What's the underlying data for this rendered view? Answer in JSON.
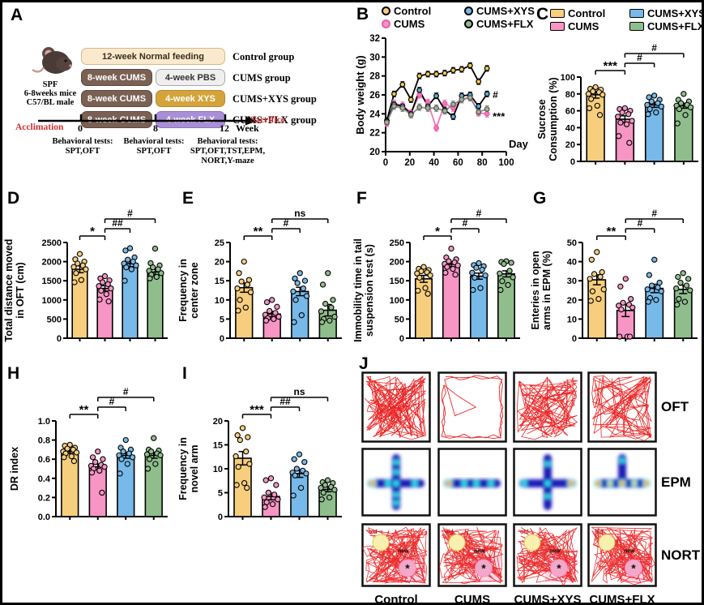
{
  "panels": {
    "a": "A",
    "b": "B",
    "c": "C",
    "d": "D",
    "e": "E",
    "f": "F",
    "g": "G",
    "h": "H",
    "i": "I",
    "j": "J"
  },
  "groups": [
    {
      "name": "Control",
      "color": "#F6CE7E"
    },
    {
      "name": "CUMS",
      "color": "#F795C5"
    },
    {
      "name": "CUMS+XYS",
      "color": "#77B9E8"
    },
    {
      "name": "CUMS+FLX",
      "color": "#8FBE8C"
    }
  ],
  "colors": {
    "trace_red": "#EA1A1A",
    "epm_blue": "#1C1CB8",
    "red_text": "#D03030",
    "box_feed": "#FAE9CC",
    "box_cums": "#7A6153",
    "box_pbs": "#EFEFEF",
    "box_xys": "#D4A43C",
    "box_flx": "#A98FD6"
  },
  "panel_a": {
    "subject": {
      "line1": "SPF",
      "line2": "6-8weeks mice",
      "line3": "C57/BL male"
    },
    "rows": [
      {
        "box1": "12-week Normal feeding",
        "group": "Control group"
      },
      {
        "box1": "8-week CUMS",
        "box2": "4-week PBS",
        "group": "CUMS group"
      },
      {
        "box1": "8-week CUMS",
        "box2": "4-week XYS",
        "group": "CUMS+XYS group"
      },
      {
        "box1": "8-week CUMS",
        "box2": "4-week FLX",
        "group": "CUMS+FLX group"
      }
    ],
    "timeline": {
      "acclimation": "Acclimation",
      "tick0": "0",
      "tick8": "8",
      "tick12": "12",
      "week": "Week",
      "sacrifice": "Sacrifice"
    },
    "tests": [
      {
        "title": "Behavioral tests:",
        "lines": [
          "SPT,OFT"
        ]
      },
      {
        "title": "Behavioral tests:",
        "lines": [
          "SPT,OFT"
        ]
      },
      {
        "title": "Behavioral tests:",
        "lines": [
          "SPT,OFT,TST,EPM,",
          "NORT,Y-maze"
        ]
      }
    ]
  },
  "panel_j": {
    "row_labels": [
      "OFT",
      "EPM",
      "NORT"
    ],
    "column_labels": [
      "Control",
      "CUMS",
      "CUMS+XYS",
      "CUMS+FLX"
    ],
    "nort_labels": {
      "old": "old",
      "new": "new",
      "star": "*"
    }
  },
  "chart_data": [
    {
      "id": "B",
      "type": "line",
      "ylabel": "Body weight (g)",
      "xlabel": "Day",
      "xlim": [
        0,
        100
      ],
      "ylim": [
        20,
        32
      ],
      "xticks": [
        0,
        20,
        40,
        60,
        80,
        100
      ],
      "yticks": [
        20,
        22,
        24,
        26,
        28,
        30,
        32
      ],
      "x": [
        1,
        7,
        14,
        21,
        28,
        35,
        42,
        49,
        56,
        63,
        70,
        77,
        84
      ],
      "series": [
        {
          "name": "Control",
          "line_color": "#000000",
          "marker_color": "#F2C94C",
          "marker_stroke": "#000000",
          "err": 0.3,
          "values": [
            23.3,
            26.1,
            27.1,
            25.5,
            28.0,
            28.2,
            28.2,
            28.3,
            28.6,
            28.7,
            29.1,
            27.4,
            28.8
          ]
        },
        {
          "name": "CUMS",
          "line_color": "#F574B8",
          "marker_color": "#F574B8",
          "marker_stroke": "#E95BA5",
          "err": 0.35,
          "values": [
            23.0,
            25.1,
            24.9,
            24.1,
            26.0,
            25.2,
            22.5,
            25.1,
            24.6,
            25.5,
            25.8,
            24.1,
            24.0
          ]
        },
        {
          "name": "CUMS+XYS",
          "line_color": "#000000",
          "marker_color": "#5FAFE2",
          "marker_stroke": "#000000",
          "err": 0.3,
          "values": [
            23.2,
            25.0,
            24.8,
            24.0,
            26.5,
            24.8,
            25.9,
            24.4,
            23.7,
            25.9,
            26.0,
            24.8,
            26.1
          ]
        },
        {
          "name": "CUMS+FLX",
          "line_color": "#8A8A8A",
          "marker_color": "#9DB98F",
          "marker_stroke": "#555555",
          "err": 0.35,
          "values": [
            23.1,
            24.8,
            24.6,
            23.9,
            24.7,
            24.6,
            24.6,
            24.3,
            25.0,
            25.5,
            25.7,
            24.2,
            24.5
          ]
        }
      ],
      "annotations": [
        {
          "text": "#",
          "x": 86,
          "y": 26.0
        },
        {
          "text": "***",
          "x": 86,
          "y": 23.7
        }
      ],
      "legend_position": "top"
    },
    {
      "id": "C",
      "type": "bar",
      "ylabel_lines": [
        "Sucrose",
        "Consumption (%)"
      ],
      "categories": [
        "Control",
        "CUMS",
        "CUMS+XYS",
        "CUMS+FLX"
      ],
      "values": [
        79,
        50,
        67,
        66
      ],
      "errors": [
        4,
        4,
        3,
        3
      ],
      "ylim": [
        0,
        100
      ],
      "yticks": [
        0,
        20,
        40,
        60,
        80,
        100
      ],
      "points": [
        [
          88,
          86,
          85,
          83,
          82,
          80,
          79,
          74,
          66,
          63,
          55
        ],
        [
          63,
          62,
          60,
          58,
          56,
          53,
          48,
          46,
          44,
          30,
          22
        ],
        [
          78,
          76,
          73,
          71,
          69,
          67,
          65,
          62,
          58,
          56
        ],
        [
          80,
          73,
          71,
          69,
          67,
          66,
          64,
          62,
          55,
          45
        ]
      ],
      "sig": [
        {
          "a": 0,
          "b": 1,
          "label": "***",
          "level": 1
        },
        {
          "a": 1,
          "b": 2,
          "label": "#",
          "level": 1.6
        },
        {
          "a": 1,
          "b": 3,
          "label": "#",
          "level": 2.4
        }
      ],
      "legend_position": "top"
    },
    {
      "id": "D",
      "type": "bar",
      "ylabel_lines": [
        "Total distance moved",
        "in OFT (cm)"
      ],
      "categories": [
        "Control",
        "CUMS",
        "CUMS+XYS",
        "CUMS+FLX"
      ],
      "values": [
        1800,
        1300,
        1950,
        1730
      ],
      "errors": [
        90,
        70,
        80,
        70
      ],
      "ylim": [
        0,
        2500
      ],
      "yticks": [
        0,
        500,
        1000,
        1500,
        2000,
        2500
      ],
      "points": [
        [
          2200,
          2060,
          2000,
          1950,
          1900,
          1860,
          1800,
          1700,
          1520,
          1460
        ],
        [
          1620,
          1560,
          1510,
          1460,
          1410,
          1360,
          1300,
          1240,
          1150,
          1010,
          960
        ],
        [
          2350,
          2290,
          2110,
          2050,
          2000,
          1950,
          1900,
          1850,
          1800,
          1500
        ],
        [
          2340,
          1960,
          1900,
          1850,
          1800,
          1760,
          1700,
          1660,
          1600,
          1560
        ]
      ],
      "sig": [
        {
          "a": 0,
          "b": 1,
          "label": "*",
          "level": 1
        },
        {
          "a": 1,
          "b": 2,
          "label": "##",
          "level": 1.6
        },
        {
          "a": 1,
          "b": 3,
          "label": "#",
          "level": 2.4
        }
      ]
    },
    {
      "id": "E",
      "type": "bar",
      "ylabel_lines": [
        "Frequency in",
        "center zone"
      ],
      "categories": [
        "Control",
        "CUMS",
        "CUMS+XYS",
        "CUMS+FLX"
      ],
      "values": [
        13.2,
        6.3,
        12.2,
        7.3
      ],
      "errors": [
        1.2,
        0.7,
        1.1,
        1.5
      ],
      "ylim": [
        0,
        25
      ],
      "yticks": [
        0,
        5,
        10,
        15,
        20,
        25
      ],
      "points": [
        [
          20,
          17,
          15.2,
          14.8,
          14,
          13,
          12,
          10,
          8,
          7.2
        ],
        [
          10,
          9.4,
          8.2,
          7.1,
          6.6,
          6.1,
          5.6,
          5.2,
          5,
          4.6
        ],
        [
          17,
          15.6,
          15,
          14.4,
          13,
          12.2,
          11,
          10,
          6,
          4.2
        ],
        [
          17,
          14,
          10,
          9,
          8,
          7,
          5.6,
          5,
          4.6,
          4.2
        ]
      ],
      "sig": [
        {
          "a": 0,
          "b": 1,
          "label": "**",
          "level": 1
        },
        {
          "a": 1,
          "b": 2,
          "label": "#",
          "level": 1.6
        },
        {
          "a": 1,
          "b": 3,
          "label": "ns",
          "level": 2.4
        }
      ]
    },
    {
      "id": "F",
      "type": "bar",
      "ylabel_lines": [
        "Immobility time in tail",
        "suspension test (s)"
      ],
      "categories": [
        "Control",
        "CUMS",
        "CUMS+XYS",
        "CUMS+FLX"
      ],
      "values": [
        155,
        193,
        162,
        168
      ],
      "errors": [
        9,
        7,
        8,
        8
      ],
      "ylim": [
        0,
        250
      ],
      "yticks": [
        0,
        50,
        100,
        150,
        200,
        250
      ],
      "points": [
        [
          186,
          181,
          178,
          175,
          172,
          169,
          164,
          158,
          131,
          124,
          116
        ],
        [
          234,
          211,
          206,
          201,
          198,
          194,
          190,
          186,
          181,
          171,
          166
        ],
        [
          196,
          191,
          188,
          184,
          179,
          171,
          164,
          158,
          131,
          126
        ],
        [
          201,
          199,
          197,
          194,
          176,
          169,
          159,
          149,
          139,
          126
        ]
      ],
      "sig": [
        {
          "a": 0,
          "b": 1,
          "label": "*",
          "level": 1
        },
        {
          "a": 1,
          "b": 2,
          "label": "#",
          "level": 1.6
        },
        {
          "a": 1,
          "b": 3,
          "label": "#",
          "level": 2.4
        }
      ]
    },
    {
      "id": "G",
      "type": "bar",
      "ylabel_lines": [
        "Enteries in open",
        "arms in EPM (%)"
      ],
      "categories": [
        "Control",
        "CUMS",
        "CUMS+XYS",
        "CUMS+FLX"
      ],
      "values": [
        30.5,
        14.5,
        26,
        25.5
      ],
      "errors": [
        2.6,
        3.2,
        2.2,
        2.2
      ],
      "ylim": [
        0,
        50
      ],
      "yticks": [
        0,
        10,
        20,
        30,
        40,
        50
      ],
      "points": [
        [
          45,
          41,
          34.5,
          33.5,
          32,
          31,
          25.5,
          24.5,
          20.5,
          19.5
        ],
        [
          31,
          27,
          20.5,
          18.5,
          17.5,
          17,
          16,
          15,
          0.8,
          0.8,
          0.8
        ],
        [
          41,
          33,
          29,
          27.5,
          26.5,
          25.5,
          24.5,
          21,
          20,
          19
        ],
        [
          34,
          32,
          31,
          29,
          27.5,
          26,
          25,
          20.5,
          19,
          17.5
        ]
      ],
      "sig": [
        {
          "a": 0,
          "b": 1,
          "label": "**",
          "level": 1
        },
        {
          "a": 1,
          "b": 2,
          "label": "#",
          "level": 1.6
        },
        {
          "a": 1,
          "b": 3,
          "label": "#",
          "level": 2.4
        }
      ]
    },
    {
      "id": "H",
      "type": "bar",
      "ylabel_lines": [
        "DR index"
      ],
      "categories": [
        "Control",
        "CUMS",
        "CUMS+XYS",
        "CUMS+FLX"
      ],
      "values": [
        0.68,
        0.52,
        0.64,
        0.64
      ],
      "errors": [
        0.02,
        0.03,
        0.03,
        0.03
      ],
      "ylim": [
        0,
        1
      ],
      "yticks": [
        0,
        0.2,
        0.4,
        0.6,
        0.8,
        1
      ],
      "ytick_labels": [
        "0.0",
        "0.2",
        "0.4",
        "0.6",
        "0.8",
        "1.0"
      ],
      "points": [
        [
          0.75,
          0.74,
          0.72,
          0.71,
          0.7,
          0.68,
          0.67,
          0.66,
          0.63,
          0.62,
          0.58
        ],
        [
          0.68,
          0.62,
          0.6,
          0.57,
          0.54,
          0.53,
          0.52,
          0.5,
          0.48,
          0.46,
          0.25
        ],
        [
          0.8,
          0.72,
          0.7,
          0.68,
          0.66,
          0.64,
          0.62,
          0.6,
          0.55,
          0.45
        ],
        [
          0.82,
          0.7,
          0.69,
          0.68,
          0.66,
          0.65,
          0.64,
          0.6,
          0.55,
          0.5
        ]
      ],
      "sig": [
        {
          "a": 0,
          "b": 1,
          "label": "**",
          "level": 1
        },
        {
          "a": 1,
          "b": 2,
          "label": "#",
          "level": 1.6
        },
        {
          "a": 1,
          "b": 3,
          "label": "#",
          "level": 2.4
        }
      ]
    },
    {
      "id": "I",
      "type": "bar",
      "ylabel_lines": [
        "Frequency in",
        "novel arm"
      ],
      "categories": [
        "Control",
        "CUMS",
        "CUMS+XYS",
        "CUMS+FLX"
      ],
      "values": [
        12.2,
        4.2,
        9,
        5.7
      ],
      "errors": [
        1.4,
        0.7,
        0.8,
        0.5
      ],
      "ylim": [
        0,
        20
      ],
      "yticks": [
        0,
        5,
        10,
        15,
        20
      ],
      "points": [
        [
          18.5,
          17,
          16.6,
          16,
          13.6,
          12.6,
          11,
          10.4,
          7,
          6.6,
          6
        ],
        [
          8,
          7.6,
          6.6,
          5,
          4.6,
          4,
          3.6,
          3,
          2.6,
          2
        ],
        [
          13,
          12,
          11.4,
          10,
          9.6,
          9.2,
          9,
          8.6,
          6,
          4.4
        ],
        [
          7.6,
          7.2,
          7,
          6.6,
          6.2,
          6,
          5.6,
          5,
          4,
          3.6
        ]
      ],
      "sig": [
        {
          "a": 0,
          "b": 1,
          "label": "***",
          "level": 1
        },
        {
          "a": 1,
          "b": 2,
          "label": "##",
          "level": 1.6
        },
        {
          "a": 1,
          "b": 3,
          "label": "ns",
          "level": 2.4
        }
      ]
    }
  ]
}
